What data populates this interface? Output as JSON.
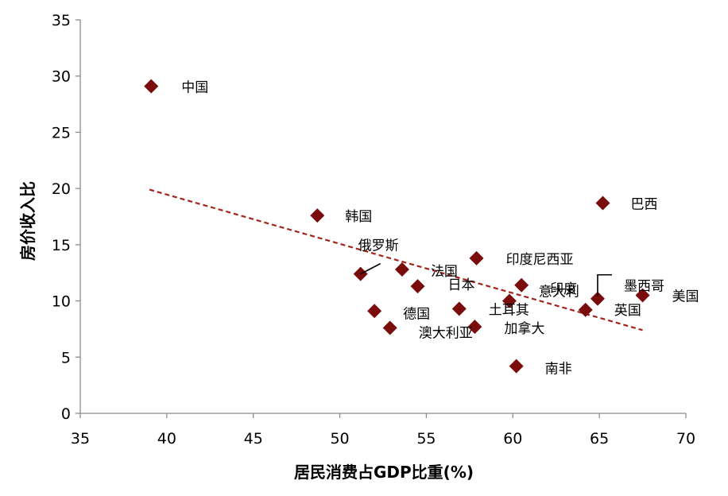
{
  "chart_data": {
    "type": "scatter",
    "title": "",
    "xlabel": "居民消费占GDP比重(%)",
    "ylabel": "房价收入比",
    "xlim": [
      35,
      70
    ],
    "ylim": [
      0,
      35
    ],
    "x_ticks": [
      35,
      40,
      45,
      50,
      55,
      60,
      65,
      70
    ],
    "y_ticks": [
      0,
      5,
      10,
      15,
      20,
      25,
      30,
      35
    ],
    "grid": false,
    "legend": "none",
    "marker": "diamond",
    "marker_color": "#7B0C0C",
    "trendline": {
      "type": "linear",
      "style": "dashed",
      "color": "#A3241C",
      "x": [
        39,
        67.5
      ],
      "y": [
        19.9,
        7.4
      ]
    },
    "points": [
      {
        "label": "中国",
        "x": 39.1,
        "y": 29.1
      },
      {
        "label": "韩国",
        "x": 48.7,
        "y": 17.6
      },
      {
        "label": "巴西",
        "x": 65.2,
        "y": 18.7
      },
      {
        "label": "俄罗斯",
        "x": 51.2,
        "y": 12.4
      },
      {
        "label": "法国",
        "x": 53.6,
        "y": 12.8
      },
      {
        "label": "日本",
        "x": 54.5,
        "y": 11.3
      },
      {
        "label": "印度尼西亚",
        "x": 57.9,
        "y": 13.8
      },
      {
        "label": "德国",
        "x": 52.0,
        "y": 9.1
      },
      {
        "label": "澳大利亚",
        "x": 52.9,
        "y": 7.6
      },
      {
        "label": "土耳其",
        "x": 56.9,
        "y": 9.3
      },
      {
        "label": "加拿大",
        "x": 57.8,
        "y": 7.7
      },
      {
        "label": "意大利",
        "x": 59.8,
        "y": 10.0
      },
      {
        "label": "印度",
        "x": 60.5,
        "y": 11.4
      },
      {
        "label": "南非",
        "x": 60.2,
        "y": 4.2
      },
      {
        "label": "英国",
        "x": 64.2,
        "y": 9.2
      },
      {
        "label": "墨西哥",
        "x": 64.9,
        "y": 10.2
      },
      {
        "label": "美国",
        "x": 67.5,
        "y": 10.5
      }
    ]
  }
}
